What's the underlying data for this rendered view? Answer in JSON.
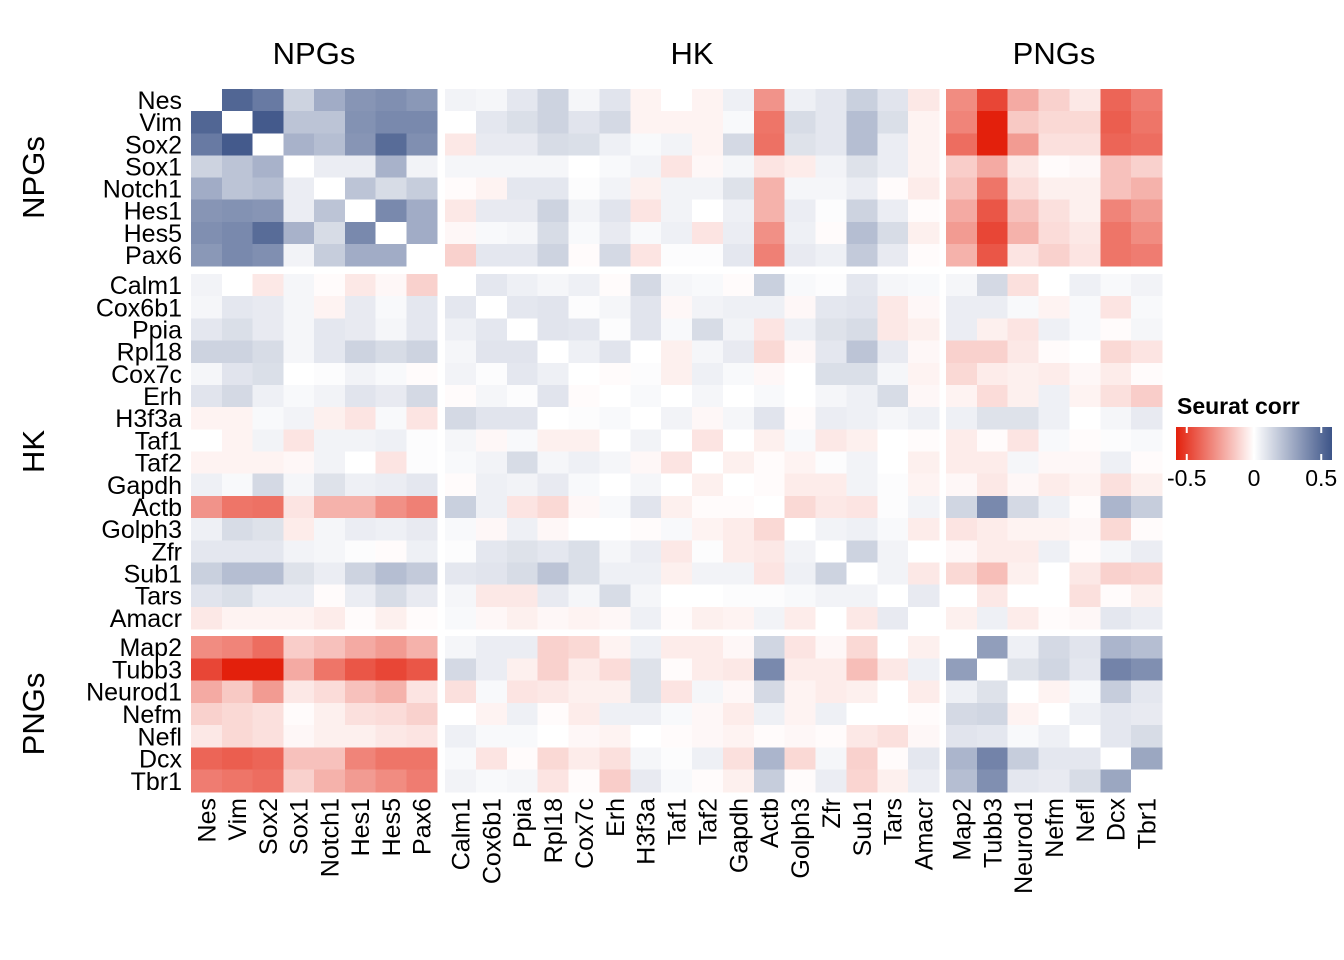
{
  "chart_data": {
    "type": "heatmap",
    "title": "",
    "groups": [
      {
        "name": "NPGs",
        "genes": [
          "Nes",
          "Vim",
          "Sox2",
          "Sox1",
          "Notch1",
          "Hes1",
          "Hes5",
          "Pax6"
        ]
      },
      {
        "name": "HK",
        "genes": [
          "Calm1",
          "Cox6b1",
          "Ppia",
          "Rpl18",
          "Cox7c",
          "Erh",
          "H3f3a",
          "Taf1",
          "Taf2",
          "Gapdh",
          "Actb",
          "Golph3",
          "Zfr",
          "Sub1",
          "Tars",
          "Amacr"
        ]
      },
      {
        "name": "PNGs",
        "genes": [
          "Map2",
          "Tubb3",
          "Neurod1",
          "Nefm",
          "Nefl",
          "Dcx",
          "Tbr1"
        ]
      }
    ],
    "legend": {
      "title": "Seurat corr",
      "ticks": [
        -0.5,
        0,
        0.5
      ],
      "tick_labels": [
        "-0.5",
        "0",
        "0.5"
      ],
      "range": [
        -0.58,
        0.58
      ],
      "low_color": "#E3200C",
      "mid_color": "#FFFFFF",
      "high_color": "#3D5488",
      "placement": "right"
    },
    "values": [
      [
        null,
        0.52,
        0.45,
        0.15,
        0.28,
        0.36,
        0.38,
        0.35,
        0.04,
        0.03,
        0.08,
        0.15,
        0.03,
        0.09,
        -0.03,
        0,
        -0.03,
        0.05,
        -0.28,
        0.05,
        0.08,
        0.16,
        0.09,
        -0.06,
        -0.3,
        -0.48,
        -0.22,
        -0.12,
        -0.06,
        -0.4,
        -0.34
      ],
      [
        0.52,
        null,
        0.56,
        0.2,
        0.2,
        0.37,
        0.4,
        0.4,
        0,
        0.08,
        0.11,
        0.15,
        0.09,
        0.13,
        -0.03,
        -0.03,
        -0.03,
        0.02,
        -0.36,
        0.12,
        0.08,
        0.22,
        0.11,
        -0.03,
        -0.32,
        -0.58,
        -0.14,
        -0.1,
        -0.1,
        -0.42,
        -0.36
      ],
      [
        0.45,
        0.56,
        null,
        0.26,
        0.22,
        0.36,
        0.5,
        0.38,
        -0.06,
        0.07,
        0.07,
        0.12,
        0.11,
        0.05,
        0.02,
        0.04,
        -0.03,
        0.13,
        -0.37,
        0.1,
        0.08,
        0.22,
        0.06,
        -0.03,
        -0.38,
        -0.58,
        -0.26,
        -0.08,
        -0.08,
        -0.4,
        -0.38
      ],
      [
        0.15,
        0.2,
        0.26,
        null,
        0.06,
        0.06,
        0.26,
        0.04,
        0.03,
        0.03,
        0.03,
        0.03,
        0,
        0.02,
        0.04,
        -0.07,
        -0.02,
        0.03,
        -0.07,
        -0.05,
        0.04,
        0.1,
        0.06,
        -0.03,
        -0.13,
        -0.22,
        -0.06,
        -0.01,
        -0.02,
        -0.16,
        -0.12
      ],
      [
        0.28,
        0.2,
        0.22,
        0.06,
        null,
        0.2,
        0.12,
        0.17,
        -0.01,
        -0.03,
        0.08,
        0.08,
        0.01,
        0.04,
        -0.04,
        0.04,
        0.04,
        0.1,
        -0.2,
        0.03,
        0.03,
        0.06,
        -0.01,
        -0.05,
        -0.16,
        -0.36,
        -0.09,
        -0.04,
        -0.04,
        -0.16,
        -0.2
      ],
      [
        0.36,
        0.37,
        0.36,
        0.06,
        0.2,
        null,
        0.4,
        0.28,
        -0.06,
        0.07,
        0.07,
        0.15,
        0.04,
        0.09,
        -0.07,
        0.04,
        0,
        0.05,
        -0.2,
        0.06,
        0.01,
        0.15,
        0.06,
        -0.01,
        -0.22,
        -0.44,
        -0.16,
        -0.08,
        -0.04,
        -0.32,
        -0.26
      ],
      [
        0.38,
        0.4,
        0.5,
        0.26,
        0.12,
        0.4,
        null,
        0.28,
        -0.02,
        0.02,
        0.03,
        0.12,
        0.02,
        0.07,
        0.02,
        0.05,
        -0.07,
        0.06,
        -0.29,
        0.05,
        -0.01,
        0.22,
        0.12,
        -0.04,
        -0.26,
        -0.48,
        -0.2,
        -0.09,
        -0.06,
        -0.36,
        -0.3
      ],
      [
        0.35,
        0.4,
        0.38,
        0.04,
        0.17,
        0.28,
        0.28,
        null,
        -0.12,
        0.08,
        0.08,
        0.15,
        -0.01,
        0.13,
        -0.07,
        0.01,
        0.01,
        0.08,
        -0.33,
        0.07,
        0.05,
        0.18,
        0.07,
        -0.01,
        -0.2,
        -0.44,
        -0.07,
        -0.12,
        -0.07,
        -0.36,
        -0.34
      ],
      [
        0.04,
        0,
        -0.06,
        0.03,
        -0.01,
        -0.06,
        -0.02,
        -0.12,
        null,
        0.08,
        0.05,
        0.03,
        0.05,
        -0.01,
        0.13,
        0.03,
        0.02,
        -0.01,
        0.16,
        0.02,
        0.01,
        0.08,
        0.03,
        0.02,
        0.03,
        0.13,
        -0.08,
        0,
        0.05,
        0.02,
        0.04
      ],
      [
        0.03,
        0.08,
        0.07,
        0.03,
        -0.03,
        0.07,
        0.02,
        0.08,
        0.08,
        null,
        0.08,
        0.09,
        0.01,
        0.03,
        0.09,
        -0.02,
        0.04,
        0.05,
        0.05,
        -0.02,
        0.08,
        0.09,
        -0.06,
        -0.02,
        0.06,
        0.06,
        0.02,
        -0.03,
        0.02,
        -0.07,
        0.02
      ],
      [
        0.08,
        0.11,
        0.07,
        0.03,
        0.08,
        0.07,
        0.03,
        0.08,
        0.05,
        0.08,
        null,
        0.09,
        0.08,
        0.01,
        0.09,
        0.02,
        0.12,
        0.04,
        -0.07,
        0.05,
        0.1,
        0.12,
        -0.06,
        -0.04,
        0.06,
        -0.04,
        -0.07,
        0.05,
        0.02,
        -0.01,
        0.03
      ],
      [
        0.15,
        0.15,
        0.12,
        0.03,
        0.08,
        0.15,
        0.12,
        0.15,
        0.03,
        0.09,
        0.09,
        null,
        0.05,
        0.09,
        0,
        -0.04,
        0.03,
        0.07,
        -0.1,
        -0.02,
        0.08,
        0.2,
        0.07,
        -0.02,
        -0.12,
        -0.12,
        -0.06,
        -0.01,
        0,
        -0.1,
        -0.07
      ],
      [
        0.03,
        0.09,
        0.11,
        0,
        0.01,
        0.04,
        0.02,
        -0.01,
        0.04,
        0.01,
        0.08,
        0.05,
        null,
        -0.01,
        0.01,
        -0.04,
        0.05,
        0.02,
        -0.02,
        0,
        0.11,
        0.11,
        0.03,
        -0.03,
        -0.1,
        -0.05,
        -0.04,
        -0.05,
        -0.02,
        -0.05,
        -0.01
      ],
      [
        0.09,
        0.13,
        0.05,
        0.02,
        0.04,
        0.09,
        0.07,
        0.13,
        -0.01,
        0.03,
        0.01,
        0.09,
        -0.01,
        null,
        0.02,
        0,
        0.03,
        0,
        0.02,
        0,
        0.03,
        0.05,
        0.12,
        -0.02,
        -0.03,
        -0.09,
        -0.04,
        0.05,
        -0.03,
        -0.08,
        -0.13
      ],
      [
        -0.03,
        -0.03,
        0.02,
        0.04,
        -0.04,
        -0.07,
        0.02,
        -0.07,
        0.13,
        0.09,
        0.09,
        0,
        0.01,
        0.02,
        null,
        0.04,
        -0.02,
        0.03,
        0.09,
        -0.01,
        0.06,
        0.05,
        0.03,
        0.05,
        0.05,
        0.1,
        0.1,
        0.05,
        0,
        0.03,
        0.07
      ],
      [
        0,
        -0.03,
        0.04,
        -0.07,
        0.04,
        0.04,
        0.05,
        0.01,
        0.03,
        -0.02,
        0.02,
        -0.04,
        -0.04,
        0,
        0.04,
        null,
        -0.07,
        0,
        -0.04,
        0.02,
        -0.06,
        -0.04,
        0,
        -0.01,
        -0.05,
        -0.01,
        -0.07,
        0.02,
        -0.01,
        0.01,
        0.02
      ],
      [
        -0.03,
        -0.03,
        -0.03,
        -0.02,
        0.04,
        0,
        -0.07,
        0.01,
        0.02,
        0.04,
        0.12,
        0.03,
        0.05,
        0.03,
        -0.02,
        -0.07,
        null,
        -0.04,
        -0.01,
        -0.03,
        0.01,
        0.04,
        0,
        -0.04,
        -0.05,
        -0.05,
        0.03,
        -0.02,
        -0.02,
        0.05,
        -0.01
      ],
      [
        0.05,
        0.02,
        0.13,
        0.03,
        0.1,
        0.05,
        0.06,
        0.08,
        -0.01,
        0.05,
        0.04,
        0.07,
        0.02,
        0,
        0.03,
        0,
        -0.04,
        null,
        -0.01,
        -0.05,
        -0.05,
        0.04,
        0.01,
        -0.03,
        -0.02,
        -0.06,
        -0.02,
        -0.05,
        -0.03,
        -0.08,
        -0.04
      ],
      [
        -0.28,
        -0.36,
        -0.37,
        -0.07,
        -0.2,
        -0.2,
        -0.29,
        -0.33,
        0.16,
        0.05,
        -0.07,
        -0.1,
        -0.02,
        0.02,
        0.09,
        -0.04,
        -0.01,
        -0.01,
        null,
        -0.1,
        -0.06,
        -0.07,
        0.01,
        0.04,
        0.14,
        0.4,
        0.13,
        0.05,
        -0.01,
        0.25,
        0.17
      ],
      [
        0.05,
        0.12,
        0.1,
        -0.05,
        0.03,
        0.06,
        0.05,
        0.07,
        0.02,
        -0.02,
        0.05,
        -0.02,
        0,
        0,
        -0.01,
        0.02,
        -0.03,
        -0.05,
        -0.1,
        null,
        0.04,
        0.05,
        0.02,
        -0.05,
        -0.07,
        -0.05,
        -0.03,
        -0.03,
        -0.02,
        -0.1,
        -0.01
      ],
      [
        0.08,
        0.08,
        0.08,
        0.04,
        0.03,
        0.01,
        -0.01,
        0.05,
        0.01,
        0.08,
        0.1,
        0.08,
        0.11,
        0.03,
        0.06,
        -0.06,
        0.01,
        -0.05,
        -0.06,
        0.04,
        null,
        0.15,
        0.04,
        0,
        -0.02,
        -0.05,
        -0.05,
        0.05,
        -0.01,
        0.03,
        0.06
      ],
      [
        0.16,
        0.22,
        0.22,
        0.1,
        0.06,
        0.15,
        0.22,
        0.18,
        0.08,
        0.09,
        0.12,
        0.2,
        0.11,
        0.05,
        0.05,
        -0.04,
        0.04,
        0.04,
        -0.07,
        0.05,
        0.15,
        null,
        0.04,
        -0.06,
        -0.1,
        -0.17,
        -0.04,
        0,
        -0.06,
        -0.12,
        -0.11
      ],
      [
        0.09,
        0.11,
        0.06,
        0.06,
        -0.01,
        0.06,
        0.12,
        0.07,
        0.03,
        -0.06,
        -0.06,
        0.07,
        0.03,
        0.12,
        0.03,
        0,
        0,
        0.01,
        0.01,
        0.02,
        0.04,
        0.04,
        null,
        0.07,
        0,
        -0.06,
        0,
        0,
        -0.08,
        -0.01,
        -0.04
      ],
      [
        -0.06,
        -0.03,
        -0.03,
        -0.03,
        -0.05,
        -0.01,
        -0.04,
        -0.01,
        0.02,
        -0.02,
        -0.04,
        -0.02,
        -0.03,
        -0.02,
        0.05,
        -0.01,
        -0.04,
        -0.03,
        0.04,
        -0.05,
        0,
        -0.06,
        0.07,
        null,
        -0.04,
        0.05,
        -0.05,
        -0.01,
        -0.02,
        0.08,
        0.06
      ],
      [
        -0.3,
        -0.32,
        -0.38,
        -0.13,
        -0.16,
        -0.22,
        -0.26,
        -0.2,
        0.03,
        0.06,
        0.06,
        -0.12,
        -0.1,
        -0.03,
        0.05,
        -0.05,
        -0.05,
        -0.02,
        0.14,
        -0.07,
        -0.02,
        -0.1,
        0,
        -0.04,
        null,
        0.33,
        0.05,
        0.13,
        0.09,
        0.25,
        0.22
      ],
      [
        -0.48,
        -0.58,
        -0.58,
        -0.22,
        -0.36,
        -0.44,
        -0.48,
        -0.44,
        0.13,
        0.06,
        -0.04,
        -0.12,
        -0.05,
        -0.09,
        0.1,
        -0.01,
        -0.05,
        -0.06,
        0.4,
        -0.05,
        -0.05,
        -0.17,
        -0.06,
        0.05,
        0.33,
        null,
        0.1,
        0.14,
        0.08,
        0.42,
        0.38
      ],
      [
        -0.22,
        -0.14,
        -0.26,
        -0.06,
        -0.09,
        -0.16,
        -0.2,
        -0.07,
        -0.08,
        0.02,
        -0.07,
        -0.06,
        -0.04,
        -0.04,
        0.1,
        -0.07,
        0.03,
        -0.02,
        0.13,
        -0.03,
        -0.05,
        -0.04,
        0,
        -0.05,
        0.05,
        0.1,
        null,
        -0.03,
        0.02,
        0.17,
        0.08
      ],
      [
        -0.12,
        -0.1,
        -0.08,
        -0.01,
        -0.04,
        -0.08,
        -0.09,
        -0.12,
        0,
        -0.03,
        0.05,
        -0.01,
        -0.05,
        0.05,
        0.05,
        0.02,
        -0.02,
        -0.05,
        0.05,
        -0.03,
        0.05,
        0,
        0,
        -0.01,
        0.13,
        0.14,
        -0.03,
        null,
        0.05,
        0.08,
        0.07
      ],
      [
        -0.06,
        -0.1,
        -0.08,
        -0.02,
        -0.04,
        -0.04,
        -0.06,
        -0.07,
        0.05,
        0.02,
        0.02,
        0,
        -0.02,
        -0.03,
        0,
        -0.01,
        -0.02,
        -0.03,
        -0.01,
        -0.02,
        -0.01,
        -0.06,
        -0.08,
        -0.02,
        0.09,
        0.08,
        0.02,
        0.05,
        null,
        0.08,
        0.12
      ],
      [
        -0.4,
        -0.42,
        -0.4,
        -0.16,
        -0.16,
        -0.32,
        -0.36,
        -0.36,
        0.02,
        -0.07,
        -0.01,
        -0.1,
        -0.05,
        -0.08,
        0.03,
        0.01,
        0.05,
        -0.08,
        0.25,
        -0.1,
        0.03,
        -0.12,
        -0.01,
        0.08,
        0.25,
        0.42,
        0.17,
        0.08,
        0.08,
        null,
        0.3
      ],
      [
        -0.34,
        -0.36,
        -0.38,
        -0.12,
        -0.2,
        -0.26,
        -0.3,
        -0.34,
        0.04,
        0.02,
        0.03,
        -0.07,
        -0.01,
        -0.13,
        0.07,
        0.02,
        -0.01,
        -0.04,
        0.17,
        -0.01,
        0.06,
        -0.11,
        -0.04,
        0.06,
        0.22,
        0.38,
        0.08,
        0.07,
        0.12,
        0.3,
        null
      ]
    ]
  }
}
